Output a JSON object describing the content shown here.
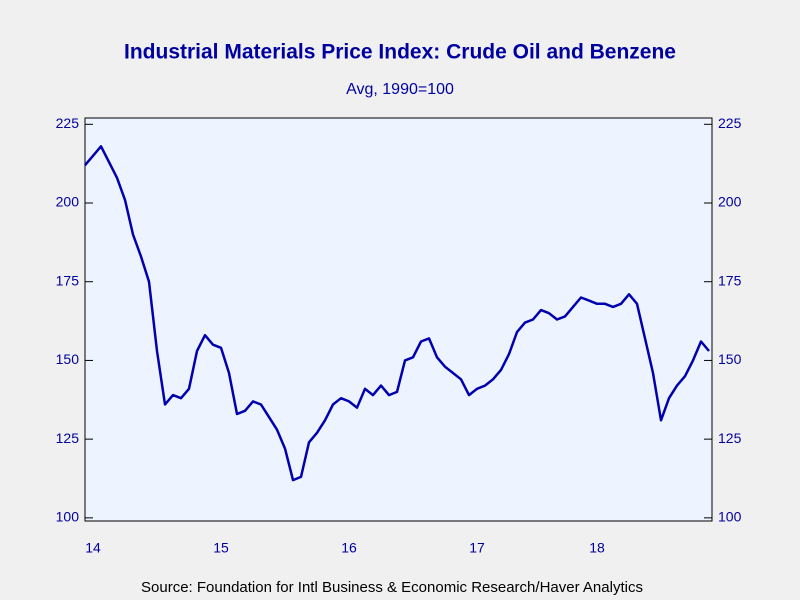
{
  "chart_data": {
    "type": "line",
    "title": "Industrial Materials Price Index: Crude Oil and Benzene",
    "subtitle": "Avg, 1990=100",
    "source": "Source:  Foundation for Intl Business & Economic Research/Haver Analytics",
    "categories": [
      null,
      "14",
      null,
      null,
      null,
      null,
      null,
      null,
      null,
      null,
      null,
      null,
      null,
      null,
      null,
      null,
      null,
      "15",
      null,
      null,
      null,
      null,
      null,
      null,
      null,
      null,
      null,
      null,
      null,
      null,
      null,
      null,
      null,
      "16",
      null,
      null,
      null,
      null,
      null,
      null,
      null,
      null,
      null,
      null,
      null,
      null,
      null,
      null,
      null,
      "17",
      null,
      null,
      null,
      null,
      null,
      null,
      null,
      null,
      null,
      null,
      null,
      null,
      null,
      null,
      "18",
      null,
      null,
      null,
      null,
      null,
      null,
      null,
      null,
      null,
      null,
      null,
      null,
      null,
      null
    ],
    "series": [
      {
        "color": "#0000b0",
        "values": [
          212,
          215,
          218,
          213,
          208,
          201,
          190,
          183,
          175,
          153,
          136,
          139,
          138,
          141,
          153,
          158,
          155,
          154,
          146,
          133,
          134,
          137,
          136,
          132,
          128,
          122,
          112,
          113,
          124,
          127,
          131,
          136,
          138,
          137,
          135,
          141,
          139,
          142,
          139,
          140,
          150,
          151,
          156,
          157,
          151,
          148,
          146,
          144,
          139,
          141,
          142,
          144,
          147,
          152,
          159,
          162,
          163,
          166,
          165,
          163,
          164,
          167,
          170,
          169,
          168,
          168,
          167,
          168,
          171,
          168,
          157,
          146,
          131,
          138,
          142,
          145,
          150,
          156,
          153
        ]
      }
    ],
    "ylim": [
      99,
      227
    ],
    "yticks": [
      100,
      125,
      150,
      175,
      200,
      225
    ]
  }
}
